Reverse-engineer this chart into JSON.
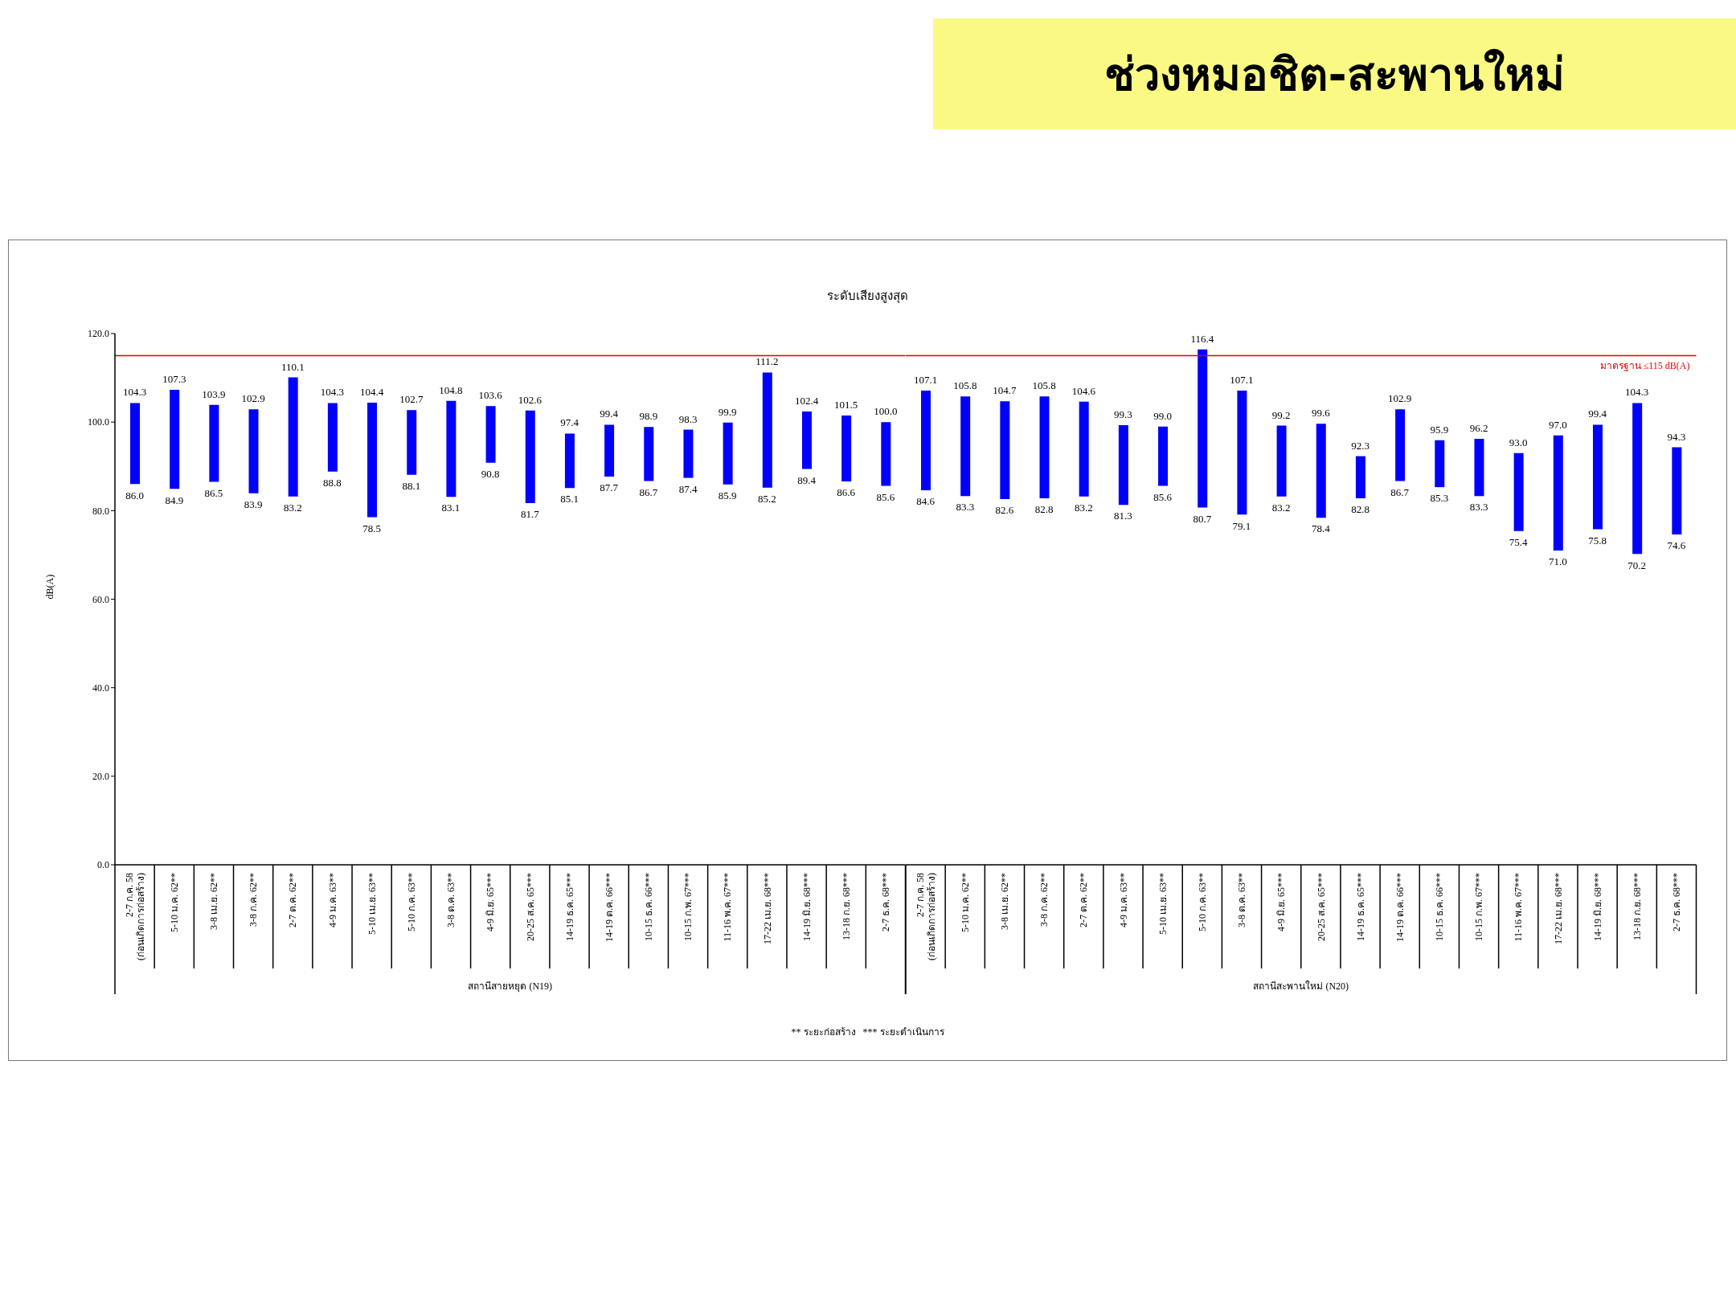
{
  "chart_data": [
    {
      "type": "other",
      "title": "ช่วงหมอชิต-สะพานใหม่"
    },
    {
      "type": "bar",
      "title": "ระดับเสียงสูงสุด",
      "ylabel": "dB(A)",
      "xlabel": "สถานีสายหยุด (N19)",
      "categories": [
        "2-7 ก.ค. 58\n(ก่อนเกิดการก่อสร้าง)",
        "5-10 ม.ค. 62**",
        "3-8 เม.ย. 62**",
        "3-8 ก.ค. 62**",
        "2-7 ต.ค. 62**",
        "4-9 ม.ค. 63**",
        "5-10 เม.ย. 63**",
        "5-10 ก.ค. 63**",
        "3-8 ต.ค. 63**",
        "4-9 มิ.ย. 65***",
        "20-25 ส.ค. 65***",
        "14-19 ธ.ค. 65***",
        "14-19 ต.ค. 66***",
        "10-15 ธ.ค. 66***",
        "10-15 ก.พ. 67***",
        "11-16 พ.ค. 67***",
        "17-22 เม.ย. 68***",
        "14-19 มิ.ย. 68***",
        "13-18 ก.ย. 68***",
        "2-7 ธ.ค. 68***"
      ],
      "base": [
        86.0,
        84.9,
        86.5,
        83.9,
        83.2,
        88.8,
        78.5,
        88.1,
        83.1,
        90.8,
        81.7,
        85.1,
        87.7,
        86.7,
        87.4,
        85.9,
        85.2,
        89.4,
        86.6,
        85.6
      ],
      "values": [
        18.3,
        22.4,
        17.4,
        19.0,
        26.9,
        15.5,
        25.9,
        14.6,
        21.7,
        12.8,
        20.9,
        12.3,
        11.7,
        12.2,
        10.9,
        14.0,
        26.0,
        13.0,
        14.9,
        14.4
      ],
      "color": "#0000ff",
      "ylim": [
        0,
        120
      ],
      "yticks": [
        {
          "value": 0,
          "label": "0.0"
        },
        {
          "value": 20,
          "label": "20.0"
        },
        {
          "value": 40,
          "label": "40.0"
        },
        {
          "value": 60,
          "label": "60.0"
        },
        {
          "value": 80,
          "label": "80.0"
        },
        {
          "value": 100,
          "label": "100.0"
        },
        {
          "value": 120,
          "label": "120.0"
        }
      ],
      "ref_lines": [
        {
          "axis": "y",
          "value": 115,
          "color": "#e00000"
        }
      ],
      "annotations": [
        {
          "text": "104.3",
          "x": "2-7 ก.ค. 58\n(ก่อนเกิดการก่อสร้าง)",
          "y": 104.3
        },
        {
          "text": "86.0",
          "x": "2-7 ก.ค. 58\n(ก่อนเกิดการก่อสร้าง)",
          "y": 86.0
        },
        {
          "text": "107.3",
          "x": "5-10 ม.ค. 62**",
          "y": 107.3
        },
        {
          "text": "84.9",
          "x": "5-10 ม.ค. 62**",
          "y": 84.9
        },
        {
          "text": "103.9",
          "x": "3-8 เม.ย. 62**",
          "y": 103.9
        },
        {
          "text": "86.5",
          "x": "3-8 เม.ย. 62**",
          "y": 86.5
        },
        {
          "text": "102.9",
          "x": "3-8 ก.ค. 62**",
          "y": 102.9
        },
        {
          "text": "83.9",
          "x": "3-8 ก.ค. 62**",
          "y": 83.9
        },
        {
          "text": "110.1",
          "x": "2-7 ต.ค. 62**",
          "y": 110.1
        },
        {
          "text": "83.2",
          "x": "2-7 ต.ค. 62**",
          "y": 83.2
        },
        {
          "text": "104.3",
          "x": "4-9 ม.ค. 63**",
          "y": 104.3
        },
        {
          "text": "88.8",
          "x": "4-9 ม.ค. 63**",
          "y": 88.8
        },
        {
          "text": "104.4",
          "x": "5-10 เม.ย. 63**",
          "y": 104.4
        },
        {
          "text": "78.5",
          "x": "5-10 เม.ย. 63**",
          "y": 78.5
        },
        {
          "text": "102.7",
          "x": "5-10 ก.ค. 63**",
          "y": 102.7
        },
        {
          "text": "88.1",
          "x": "5-10 ก.ค. 63**",
          "y": 88.1
        },
        {
          "text": "104.8",
          "x": "3-8 ต.ค. 63**",
          "y": 104.8
        },
        {
          "text": "83.1",
          "x": "3-8 ต.ค. 63**",
          "y": 83.1
        },
        {
          "text": "103.6",
          "x": "4-9 มิ.ย. 65***",
          "y": 103.6
        },
        {
          "text": "90.8",
          "x": "4-9 มิ.ย. 65***",
          "y": 90.8
        },
        {
          "text": "102.6",
          "x": "20-25 ส.ค. 65***",
          "y": 102.6
        },
        {
          "text": "81.7",
          "x": "20-25 ส.ค. 65***",
          "y": 81.7
        },
        {
          "text": "97.4",
          "x": "14-19 ธ.ค. 65***",
          "y": 97.4
        },
        {
          "text": "85.1",
          "x": "14-19 ธ.ค. 65***",
          "y": 85.1
        },
        {
          "text": "99.4",
          "x": "14-19 ต.ค. 66***",
          "y": 99.4
        },
        {
          "text": "87.7",
          "x": "14-19 ต.ค. 66***",
          "y": 87.7
        },
        {
          "text": "98.9",
          "x": "10-15 ธ.ค. 66***",
          "y": 98.9
        },
        {
          "text": "86.7",
          "x": "10-15 ธ.ค. 66***",
          "y": 86.7
        },
        {
          "text": "98.3",
          "x": "10-15 ก.พ. 67***",
          "y": 98.3
        },
        {
          "text": "87.4",
          "x": "10-15 ก.พ. 67***",
          "y": 87.4
        },
        {
          "text": "99.9",
          "x": "11-16 พ.ค. 67***",
          "y": 99.9
        },
        {
          "text": "85.9",
          "x": "11-16 พ.ค. 67***",
          "y": 85.9
        },
        {
          "text": "111.2",
          "x": "17-22 เม.ย. 68***",
          "y": 111.2
        },
        {
          "text": "85.2",
          "x": "17-22 เม.ย. 68***",
          "y": 85.2
        },
        {
          "text": "102.4",
          "x": "14-19 มิ.ย. 68***",
          "y": 102.4
        },
        {
          "text": "89.4",
          "x": "14-19 มิ.ย. 68***",
          "y": 89.4
        },
        {
          "text": "101.5",
          "x": "13-18 ก.ย. 68***",
          "y": 101.5
        },
        {
          "text": "86.6",
          "x": "13-18 ก.ย. 68***",
          "y": 86.6
        },
        {
          "text": "100.0",
          "x": "2-7 ธ.ค. 68***",
          "y": 100.0
        },
        {
          "text": "85.6",
          "x": "2-7 ธ.ค. 68***",
          "y": 85.6
        },
        "** ระยะก่อสร้าง   *** ระยะดำเนินการ"
      ]
    },
    {
      "type": "bar",
      "xlabel": "สถานีสะพานใหม่ (N20)",
      "tick_labels": "x",
      "categories": [
        "2-7 ก.ค. 58\n(ก่อนเกิดการก่อสร้าง)",
        "5-10 ม.ค. 62**",
        "3-8 เม.ย. 62**",
        "3-8 ก.ค. 62**",
        "2-7 ต.ค. 62**",
        "4-9 ม.ค. 63**",
        "5-10 เม.ย. 63**",
        "5-10 ก.ค. 63**",
        "3-8 ต.ค. 63**",
        "4-9 มิ.ย. 65***",
        "20-25 ส.ค. 65***",
        "14-19 ธ.ค. 65***",
        "14-19 ต.ค. 66***",
        "10-15 ธ.ค. 66***",
        "10-15 ก.พ. 67***",
        "11-16 พ.ค. 67***",
        "17-22 เม.ย. 68***",
        "14-19 มิ.ย. 68***",
        "13-18 ก.ย. 68***",
        "2-7 ธ.ค. 68***"
      ],
      "base": [
        84.6,
        83.3,
        82.6,
        82.8,
        83.2,
        81.3,
        85.6,
        80.7,
        79.1,
        83.2,
        78.4,
        82.8,
        86.7,
        85.3,
        83.3,
        75.4,
        71.0,
        75.8,
        70.2,
        74.6
      ],
      "values": [
        22.5,
        22.5,
        22.1,
        23.0,
        21.4,
        18.0,
        13.4,
        35.7,
        28.0,
        16.0,
        21.2,
        9.5,
        16.2,
        10.6,
        12.9,
        17.6,
        26.0,
        23.6,
        34.1,
        19.7
      ],
      "color": "#0000ff",
      "ylim": [
        0,
        120
      ],
      "ref_lines": [
        {
          "axis": "y",
          "value": 115,
          "color": "#e00000",
          "label": "มาตรฐาน ≤115 dB(A)"
        }
      ],
      "annotations": [
        {
          "text": "107.1",
          "x": "2-7 ก.ค. 58\n(ก่อนเกิดการก่อสร้าง)",
          "y": 107.1
        },
        {
          "text": "84.6",
          "x": "2-7 ก.ค. 58\n(ก่อนเกิดการก่อสร้าง)",
          "y": 84.6
        },
        {
          "text": "105.8",
          "x": "5-10 ม.ค. 62**",
          "y": 105.8
        },
        {
          "text": "83.3",
          "x": "5-10 ม.ค. 62**",
          "y": 83.3
        },
        {
          "text": "104.7",
          "x": "3-8 เม.ย. 62**",
          "y": 104.7
        },
        {
          "text": "82.6",
          "x": "3-8 เม.ย. 62**",
          "y": 82.6
        },
        {
          "text": "105.8",
          "x": "3-8 ก.ค. 62**",
          "y": 105.8
        },
        {
          "text": "82.8",
          "x": "3-8 ก.ค. 62**",
          "y": 82.8
        },
        {
          "text": "104.6",
          "x": "2-7 ต.ค. 62**",
          "y": 104.6
        },
        {
          "text": "83.2",
          "x": "2-7 ต.ค. 62**",
          "y": 83.2
        },
        {
          "text": "99.3",
          "x": "4-9 ม.ค. 63**",
          "y": 99.3
        },
        {
          "text": "81.3",
          "x": "4-9 ม.ค. 63**",
          "y": 81.3
        },
        {
          "text": "99.0",
          "x": "5-10 เม.ย. 63**",
          "y": 99.0
        },
        {
          "text": "85.6",
          "x": "5-10 เม.ย. 63**",
          "y": 85.6
        },
        {
          "text": "116.4",
          "x": "5-10 ก.ค. 63**",
          "y": 116.4
        },
        {
          "text": "80.7",
          "x": "5-10 ก.ค. 63**",
          "y": 80.7
        },
        {
          "text": "107.1",
          "x": "3-8 ต.ค. 63**",
          "y": 107.1
        },
        {
          "text": "79.1",
          "x": "3-8 ต.ค. 63**",
          "y": 79.1
        },
        {
          "text": "99.2",
          "x": "4-9 มิ.ย. 65***",
          "y": 99.2
        },
        {
          "text": "83.2",
          "x": "4-9 มิ.ย. 65***",
          "y": 83.2
        },
        {
          "text": "99.6",
          "x": "20-25 ส.ค. 65***",
          "y": 99.6
        },
        {
          "text": "78.4",
          "x": "20-25 ส.ค. 65***",
          "y": 78.4
        },
        {
          "text": "92.3",
          "x": "14-19 ธ.ค. 65***",
          "y": 92.3
        },
        {
          "text": "82.8",
          "x": "14-19 ธ.ค. 65***",
          "y": 82.8
        },
        {
          "text": "102.9",
          "x": "14-19 ต.ค. 66***",
          "y": 102.9
        },
        {
          "text": "86.7",
          "x": "14-19 ต.ค. 66***",
          "y": 86.7
        },
        {
          "text": "95.9",
          "x": "10-15 ธ.ค. 66***",
          "y": 95.9
        },
        {
          "text": "85.3",
          "x": "10-15 ธ.ค. 66***",
          "y": 85.3
        },
        {
          "text": "96.2",
          "x": "10-15 ก.พ. 67***",
          "y": 96.2
        },
        {
          "text": "83.3",
          "x": "10-15 ก.พ. 67***",
          "y": 83.3
        },
        {
          "text": "93.0",
          "x": "11-16 พ.ค. 67***",
          "y": 93.0
        },
        {
          "text": "75.4",
          "x": "11-16 พ.ค. 67***",
          "y": 75.4
        },
        {
          "text": "97.0",
          "x": "17-22 เม.ย. 68***",
          "y": 97.0
        },
        {
          "text": "71.0",
          "x": "17-22 เม.ย. 68***",
          "y": 71.0
        },
        {
          "text": "99.4",
          "x": "14-19 มิ.ย. 68***",
          "y": 99.4
        },
        {
          "text": "75.8",
          "x": "14-19 มิ.ย. 68***",
          "y": 75.8
        },
        {
          "text": "104.3",
          "x": "13-18 ก.ย. 68***",
          "y": 104.3
        },
        {
          "text": "70.2",
          "x": "13-18 ก.ย. 68***",
          "y": 70.2
        },
        {
          "text": "94.3",
          "x": "2-7 ธ.ค. 68***",
          "y": 94.3
        },
        {
          "text": "74.6",
          "x": "2-7 ธ.ค. 68***",
          "y": 74.6
        }
      ]
    }
  ]
}
